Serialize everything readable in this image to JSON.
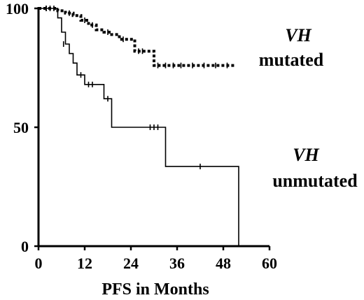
{
  "chart_data": {
    "type": "line",
    "title": "",
    "xlabel": "PFS in Months",
    "ylabel": "",
    "xlim": [
      0,
      60
    ],
    "ylim": [
      0,
      100
    ],
    "xticks": [
      "0",
      "12",
      "24",
      "36",
      "48",
      "60"
    ],
    "yticks": [
      "0",
      "50",
      "100"
    ],
    "grid": false,
    "series": [
      {
        "style": "dashed",
        "color": "#000000",
        "steps": [
          [
            0,
            100
          ],
          [
            5,
            99
          ],
          [
            7,
            98
          ],
          [
            9,
            97
          ],
          [
            11,
            95
          ],
          [
            13,
            93
          ],
          [
            15,
            91
          ],
          [
            17,
            90
          ],
          [
            19,
            89
          ],
          [
            21,
            87
          ],
          [
            25,
            82
          ],
          [
            30,
            76
          ],
          [
            51,
            76
          ]
        ],
        "censored": [
          [
            2,
            100
          ],
          [
            4,
            100
          ],
          [
            8,
            98
          ],
          [
            12,
            95
          ],
          [
            14,
            93
          ],
          [
            18,
            90
          ],
          [
            22,
            87
          ],
          [
            26,
            82
          ],
          [
            27,
            82
          ],
          [
            31,
            76
          ],
          [
            33,
            76
          ],
          [
            35,
            76
          ],
          [
            37,
            76
          ],
          [
            40,
            76
          ],
          [
            43,
            76
          ],
          [
            46,
            76
          ],
          [
            49,
            76
          ]
        ]
      },
      {
        "style": "solid",
        "color": "#000000",
        "steps": [
          [
            0,
            100
          ],
          [
            5,
            96
          ],
          [
            6,
            90
          ],
          [
            7,
            85
          ],
          [
            8,
            81
          ],
          [
            9,
            77
          ],
          [
            10,
            72
          ],
          [
            12,
            68
          ],
          [
            17,
            62
          ],
          [
            19,
            50
          ],
          [
            33,
            33.5
          ],
          [
            52,
            0
          ]
        ],
        "censored": [
          [
            2,
            100
          ],
          [
            3,
            100
          ],
          [
            6.5,
            85
          ],
          [
            11,
            72
          ],
          [
            13,
            68
          ],
          [
            14,
            68
          ],
          [
            18,
            62
          ],
          [
            29,
            50
          ],
          [
            30,
            50
          ],
          [
            31,
            50
          ],
          [
            42,
            33.5
          ]
        ]
      }
    ],
    "annotations": [
      {
        "lines": [
          "VH",
          "mutated"
        ],
        "at": [
          62,
          88
        ]
      },
      {
        "lines": [
          "VH",
          "unmutated"
        ],
        "at": [
          62,
          38
        ]
      }
    ]
  }
}
